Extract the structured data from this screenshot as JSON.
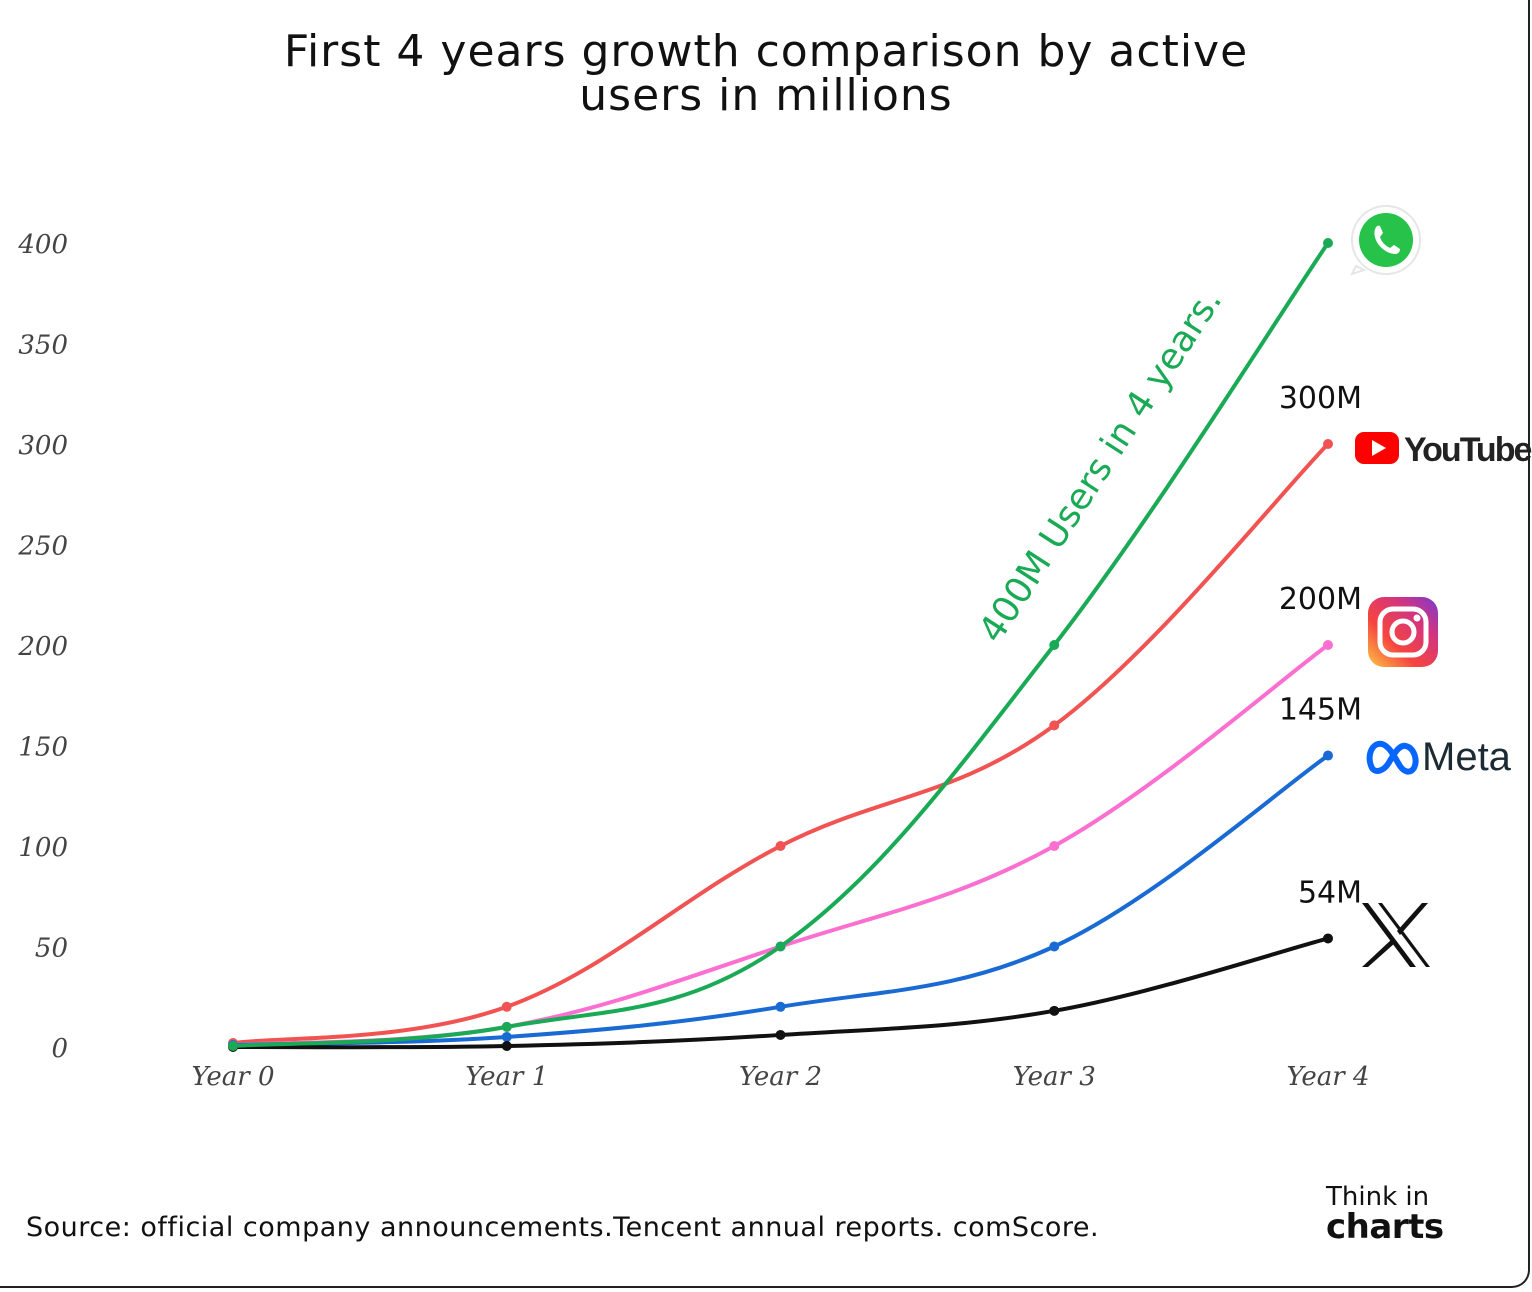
{
  "title_lines": [
    "First 4 years growth comparison by active",
    "users in millions"
  ],
  "source": "Source: official company announcements.Tencent annual reports. comScore.",
  "brand": {
    "line1": "Think in",
    "line2": "charts"
  },
  "chart_data": {
    "type": "line",
    "title": "First 4 years growth comparison by active users in millions",
    "categories": [
      "Year 0",
      "Year 1",
      "Year 2",
      "Year 3",
      "Year 4"
    ],
    "y_ticks": [
      0,
      50,
      100,
      150,
      200,
      250,
      300,
      350,
      400
    ],
    "ylim": [
      0,
      400
    ],
    "xlabel": "",
    "ylabel": "",
    "grid": false,
    "series": [
      {
        "name": "YouTube",
        "color": "#f05352",
        "values": [
          2,
          20,
          100,
          160,
          300
        ],
        "end_label": "300M",
        "logo": "youtube-logo"
      },
      {
        "name": "Instagram",
        "color": "#fb6fd0",
        "values": [
          1,
          10,
          50,
          100,
          200
        ],
        "end_label": "200M",
        "logo": "instagram-logo"
      },
      {
        "name": "Meta",
        "color": "#1a6ad3",
        "values": [
          1,
          5,
          20,
          50,
          145
        ],
        "end_label": "145M",
        "logo": "meta-logo"
      },
      {
        "name": "X",
        "color": "#111111",
        "values": [
          0,
          0.5,
          6,
          18,
          54
        ],
        "end_label": "54M",
        "logo": "x-logo"
      },
      {
        "name": "WhatsApp",
        "color": "#1aaa55",
        "values": [
          0.5,
          10,
          50,
          200,
          400
        ],
        "end_label": "",
        "logo": "whatsapp-logo"
      }
    ],
    "annotation": "400M Users in 4 years.",
    "logo_texts": {
      "youtube": "YouTube",
      "meta": "Meta"
    }
  }
}
